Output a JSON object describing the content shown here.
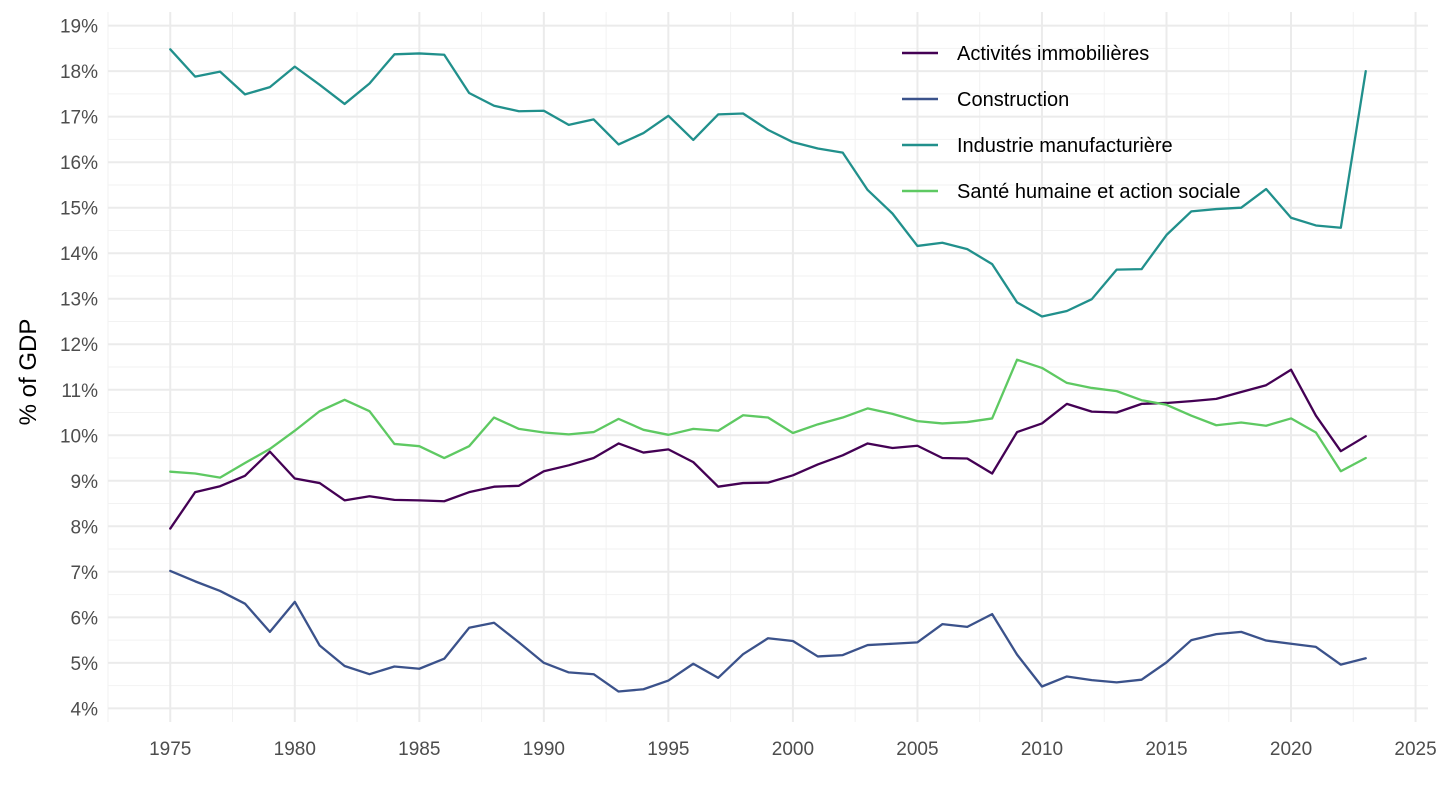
{
  "chart_data": {
    "type": "line",
    "ylabel": "% of GDP",
    "xlabel": "",
    "xlim": [
      1972.5,
      2025.5
    ],
    "ylim": [
      3.7,
      19.3
    ],
    "x_ticks": [
      1975,
      1980,
      1985,
      1990,
      1995,
      2000,
      2005,
      2010,
      2015,
      2020,
      2025
    ],
    "x_tick_labels": [
      "1975",
      "1980",
      "1985",
      "1990",
      "1995",
      "2000",
      "2005",
      "2010",
      "2015",
      "2020",
      "2025"
    ],
    "y_ticks": [
      4,
      5,
      6,
      7,
      8,
      9,
      10,
      11,
      12,
      13,
      14,
      15,
      16,
      17,
      18,
      19
    ],
    "y_tick_labels": [
      "4%",
      "5%",
      "6%",
      "7%",
      "8%",
      "9%",
      "10%",
      "11%",
      "12%",
      "13%",
      "14%",
      "15%",
      "16%",
      "17%",
      "18%",
      "19%"
    ],
    "grid": true,
    "legend_position": "top-right",
    "x": [
      1975,
      1976,
      1977,
      1978,
      1979,
      1980,
      1981,
      1982,
      1983,
      1984,
      1985,
      1986,
      1987,
      1988,
      1989,
      1990,
      1991,
      1992,
      1993,
      1994,
      1995,
      1996,
      1997,
      1998,
      1999,
      2000,
      2001,
      2002,
      2003,
      2004,
      2005,
      2006,
      2007,
      2008,
      2009,
      2010,
      2011,
      2012,
      2013,
      2014,
      2015,
      2016,
      2017,
      2018,
      2019,
      2020,
      2021,
      2022,
      2023
    ],
    "series": [
      {
        "name": "Activités immobilières",
        "color": "#440154",
        "values": [
          7.95,
          8.75,
          8.88,
          9.11,
          9.64,
          9.05,
          8.95,
          8.57,
          8.66,
          8.58,
          8.57,
          8.55,
          8.75,
          8.87,
          8.89,
          9.21,
          9.34,
          9.5,
          9.82,
          9.62,
          9.69,
          9.41,
          8.87,
          8.95,
          8.96,
          9.12,
          9.36,
          9.56,
          9.82,
          9.72,
          9.77,
          9.5,
          9.49,
          9.16,
          10.07,
          10.26,
          10.69,
          10.52,
          10.5,
          10.69,
          10.71,
          10.75,
          10.8,
          10.95,
          11.1,
          11.44,
          10.43,
          9.65,
          9.98
        ]
      },
      {
        "name": "Construction",
        "color": "#3b528b",
        "values": [
          7.02,
          6.79,
          6.58,
          6.3,
          5.68,
          6.34,
          5.38,
          4.93,
          4.75,
          4.92,
          4.87,
          5.09,
          5.77,
          5.88,
          5.45,
          5.0,
          4.79,
          4.75,
          4.37,
          4.42,
          4.61,
          4.98,
          4.67,
          5.19,
          5.54,
          5.48,
          5.14,
          5.17,
          5.39,
          5.42,
          5.45,
          5.85,
          5.79,
          6.07,
          5.18,
          4.48,
          4.7,
          4.62,
          4.57,
          4.63,
          5.01,
          5.5,
          5.63,
          5.68,
          5.49,
          5.42,
          5.35,
          4.96,
          5.1
        ]
      },
      {
        "name": "Industrie manufacturière",
        "color": "#21908c",
        "values": [
          18.48,
          17.88,
          17.99,
          17.49,
          17.65,
          18.1,
          17.7,
          17.28,
          17.73,
          18.37,
          18.39,
          18.36,
          17.52,
          17.24,
          17.12,
          17.13,
          16.82,
          16.94,
          16.39,
          16.64,
          17.02,
          16.49,
          17.05,
          17.07,
          16.71,
          16.44,
          16.3,
          16.21,
          15.39,
          14.87,
          14.16,
          14.23,
          14.09,
          13.76,
          12.92,
          12.61,
          12.73,
          12.99,
          13.64,
          13.65,
          14.4,
          14.92,
          14.97,
          15.0,
          15.41,
          14.78,
          14.61,
          14.56,
          18.0
        ]
      },
      {
        "name": "Santé humaine et action sociale",
        "color": "#5ec962",
        "values": [
          9.2,
          9.16,
          9.07,
          9.39,
          9.7,
          10.1,
          10.53,
          10.78,
          10.53,
          9.81,
          9.76,
          9.5,
          9.76,
          10.39,
          10.14,
          10.06,
          10.02,
          10.07,
          10.36,
          10.12,
          10.01,
          10.14,
          10.1,
          10.44,
          10.39,
          10.05,
          10.24,
          10.39,
          10.59,
          10.47,
          10.31,
          10.26,
          10.29,
          10.37,
          11.66,
          11.48,
          11.15,
          11.04,
          10.97,
          10.77,
          10.67,
          10.43,
          10.22,
          10.28,
          10.21,
          10.37,
          10.06,
          9.21,
          9.5
        ]
      }
    ]
  }
}
